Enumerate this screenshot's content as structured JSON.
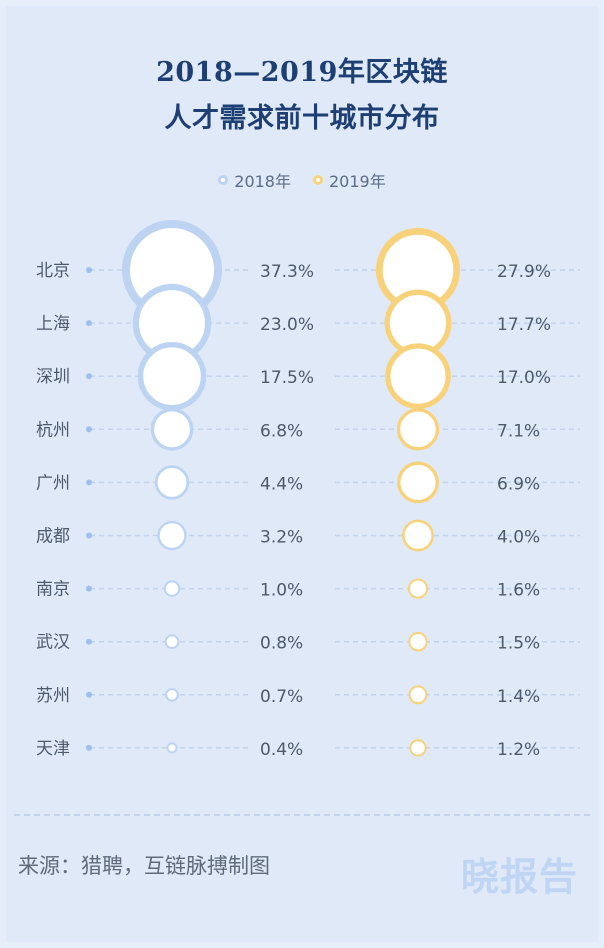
{
  "chart_data": {
    "type": "bubble",
    "title": [
      "2018—2019年区块链",
      "人才需求前十城市分布"
    ],
    "series": [
      {
        "name": "2018年",
        "color": "#bcd3f2",
        "values": [
          37.3,
          23.0,
          17.5,
          6.8,
          4.4,
          3.2,
          1.0,
          0.8,
          0.7,
          0.4
        ],
        "labels": [
          "37.3%",
          "23.0%",
          "17.5%",
          "6.8%",
          "4.4%",
          "3.2%",
          "1.0%",
          "0.8%",
          "0.7%",
          "0.4%"
        ]
      },
      {
        "name": "2019年",
        "color": "#f8d27a",
        "values": [
          27.9,
          17.7,
          17.0,
          7.1,
          6.9,
          4.0,
          1.6,
          1.5,
          1.4,
          1.2
        ],
        "labels": [
          "27.9%",
          "17.7%",
          "17.0%",
          "7.1%",
          "6.9%",
          "4.0%",
          "1.6%",
          "1.5%",
          "1.4%",
          "1.2%"
        ]
      }
    ],
    "categories": [
      "北京",
      "上海",
      "深圳",
      "杭州",
      "广州",
      "成都",
      "南京",
      "武汉",
      "苏州",
      "天津"
    ]
  },
  "colors": {
    "title": "#1d3f73",
    "label": "#4d5a6c",
    "guide": "#c3d3eb",
    "dot": "#9ec0ea"
  },
  "source": "来源：猎聘，互链脉搏制图",
  "logo": "晓报告"
}
